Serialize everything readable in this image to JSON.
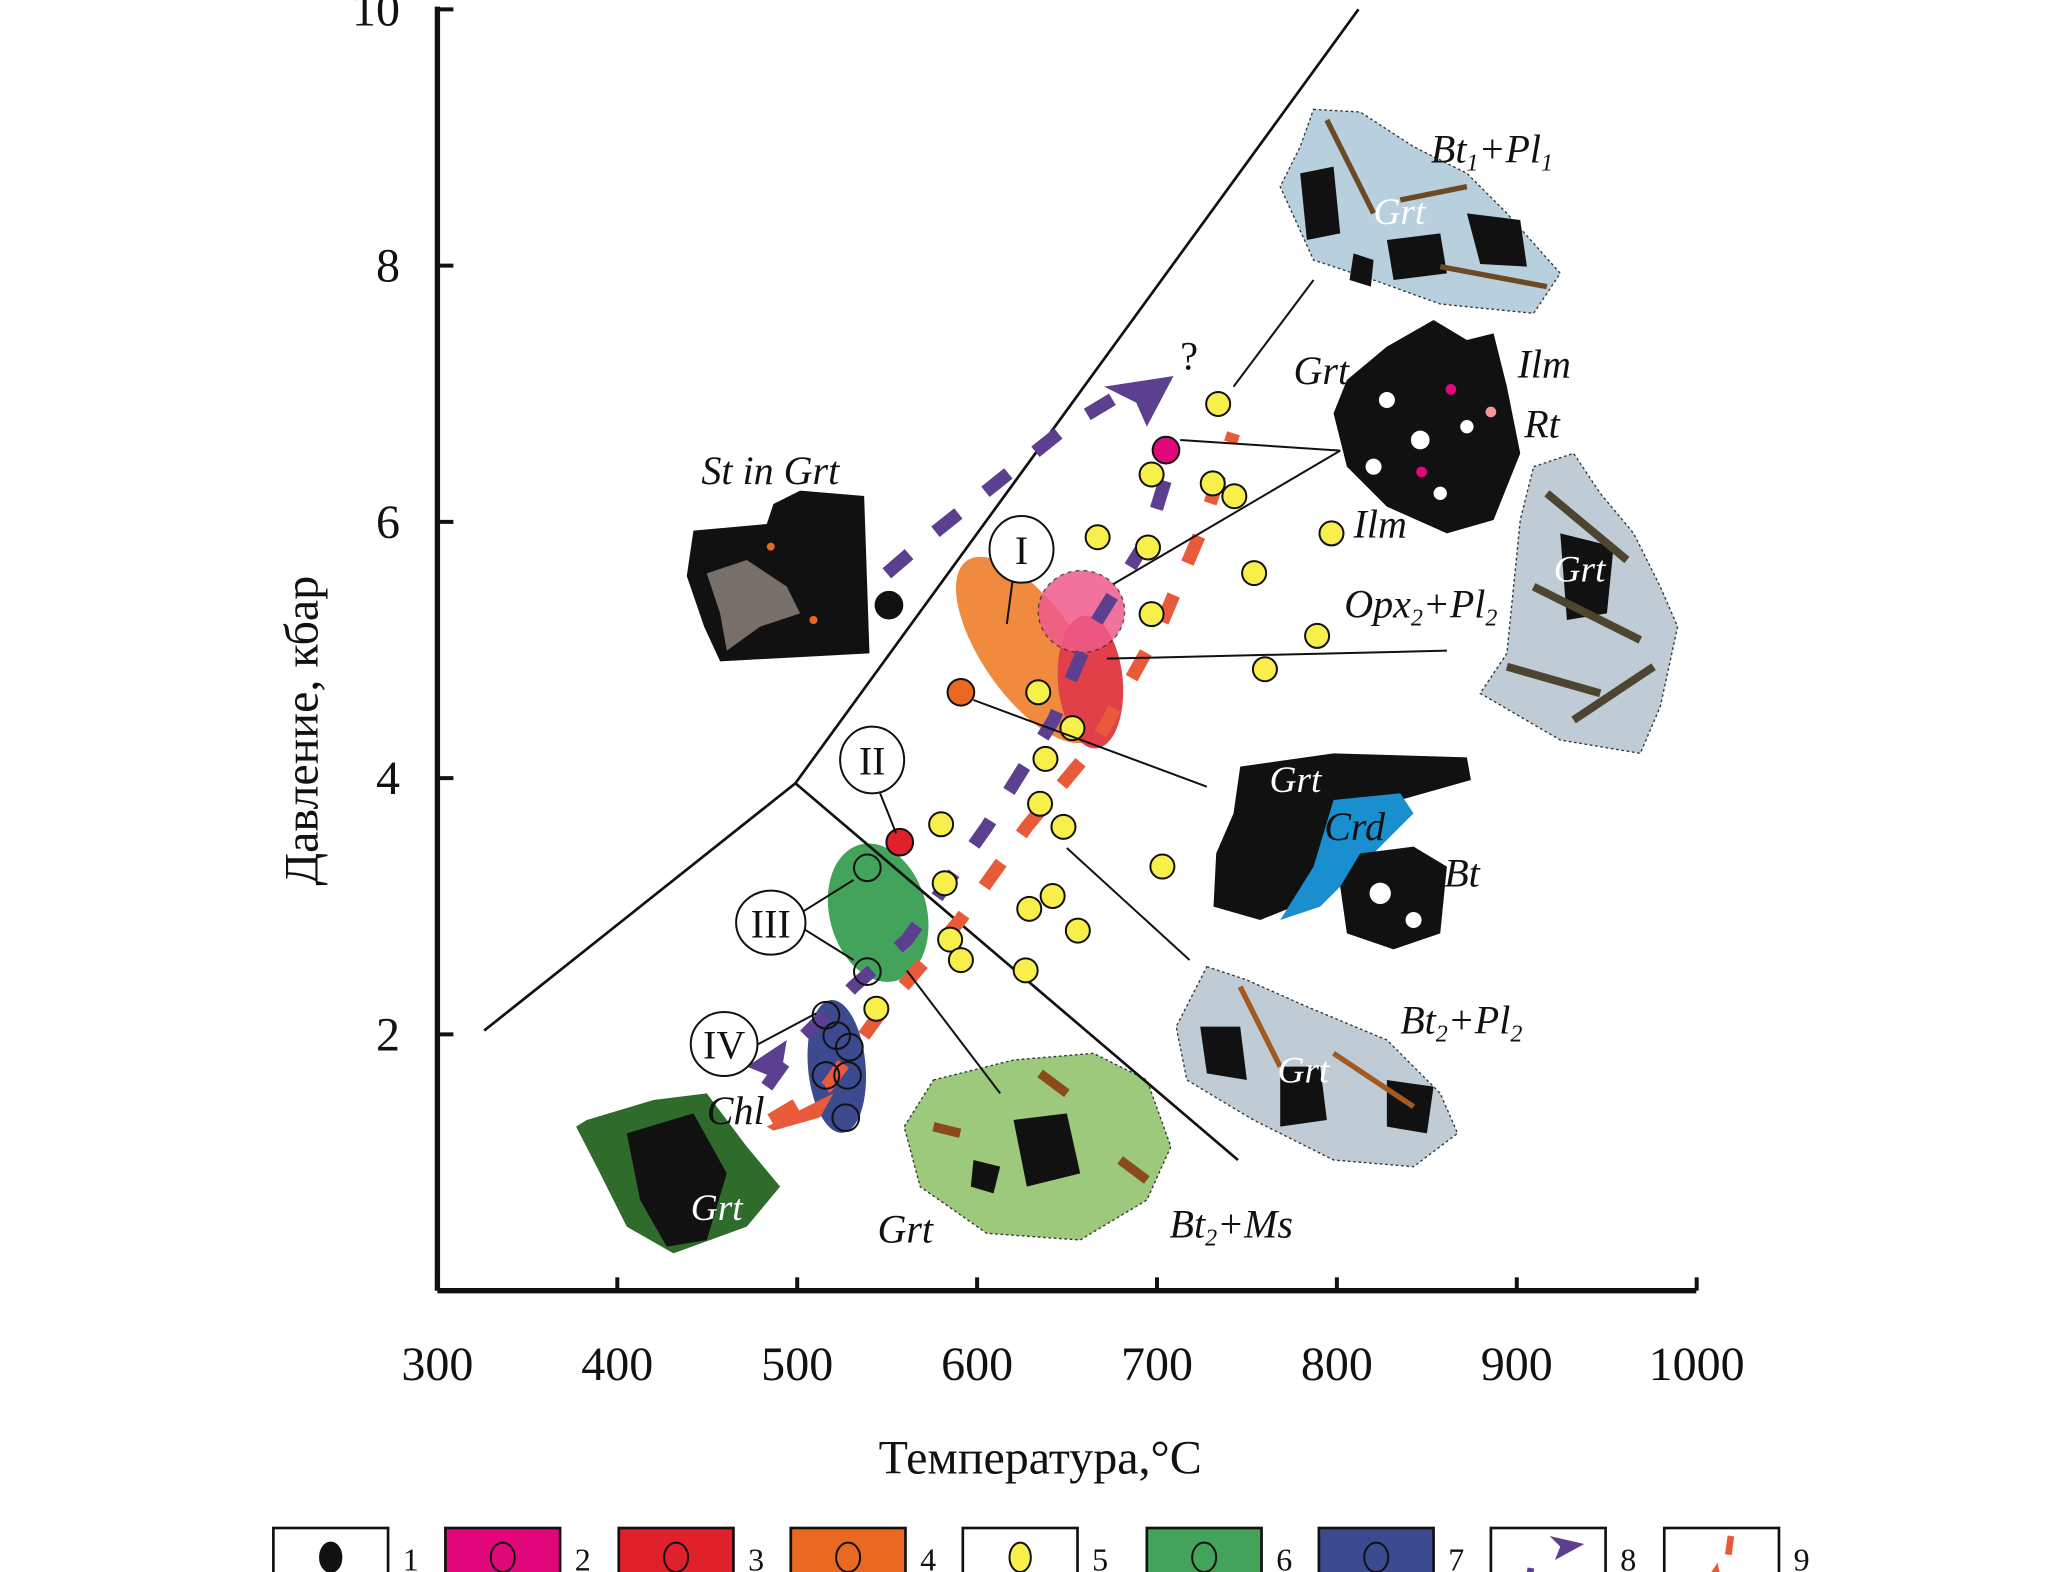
{
  "chart_data": {
    "type": "scatter",
    "title": "",
    "xlabel": "Температура,°C",
    "ylabel": "Давление, кбар",
    "xlim": [
      300,
      1000
    ],
    "ylim": [
      0,
      10
    ],
    "xticks": [
      "300",
      "400",
      "500",
      "600",
      "700",
      "800",
      "900",
      "1000"
    ],
    "yticks": [
      "2",
      "4",
      "6",
      "8",
      "10"
    ],
    "grid": false,
    "boundaries": [
      [
        [
          326,
          2.03
        ],
        [
          499,
          3.96
        ],
        [
          812,
          10.0
        ]
      ],
      [
        [
          499,
          3.96
        ],
        [
          745,
          1.02
        ]
      ]
    ],
    "series": [
      {
        "name": "1",
        "color": "#111111",
        "points": [
          [
            551,
            5.35
          ]
        ]
      },
      {
        "name": "2",
        "color": "#e0077a",
        "points": [
          [
            705,
            6.56
          ]
        ]
      },
      {
        "name": "3",
        "color": "#e0202a",
        "points": [
          [
            557,
            3.5
          ]
        ]
      },
      {
        "name": "4",
        "color": "#e8691f",
        "points": [
          [
            591,
            4.67
          ]
        ]
      },
      {
        "name": "5",
        "color": "#f8ef4a",
        "points": [
          [
            734,
            6.92
          ],
          [
            697,
            6.37
          ],
          [
            731,
            6.3
          ],
          [
            743,
            6.2
          ],
          [
            667,
            5.88
          ],
          [
            695,
            5.8
          ],
          [
            797,
            5.91
          ],
          [
            754,
            5.6
          ],
          [
            697,
            5.28
          ],
          [
            789,
            5.11
          ],
          [
            760,
            4.85
          ],
          [
            634,
            4.67
          ],
          [
            653,
            4.39
          ],
          [
            638,
            4.15
          ],
          [
            635,
            3.8
          ],
          [
            648,
            3.62
          ],
          [
            580,
            3.64
          ],
          [
            703,
            3.31
          ],
          [
            582,
            3.18
          ],
          [
            629,
            2.98
          ],
          [
            642,
            3.08
          ],
          [
            656,
            2.81
          ],
          [
            585,
            2.74
          ],
          [
            591,
            2.58
          ],
          [
            627,
            2.5
          ],
          [
            544,
            2.2
          ]
        ]
      },
      {
        "name": "6",
        "color": "#44a35a",
        "points": [
          [
            539,
            3.3
          ],
          [
            539,
            2.49
          ]
        ]
      },
      {
        "name": "7",
        "color": "#3c4a8f",
        "points": [
          [
            516,
            2.15
          ],
          [
            522,
            1.99
          ],
          [
            529,
            1.9
          ],
          [
            528,
            1.68
          ],
          [
            516,
            1.68
          ],
          [
            527,
            1.35
          ]
        ]
      }
    ],
    "fields": [
      {
        "name": "4",
        "color": "#f08a3e",
        "center": [
          629,
          5.0
        ],
        "rx_c": 26,
        "ry_kbar": 0.85
      },
      {
        "name": "3",
        "color": "#e24048",
        "center": [
          663,
          4.75
        ],
        "rx_c": 18,
        "ry_kbar": 0.52
      },
      {
        "name": "2",
        "color": "#ee5a8c",
        "center": [
          658,
          5.3
        ],
        "rx_c": 24,
        "ry_kbar": 0.32
      },
      {
        "name": "6",
        "color": "#44a35a",
        "center": [
          545,
          2.95
        ],
        "rx_c": 27,
        "ry_kbar": 0.55
      },
      {
        "name": "7",
        "color": "#3c4a8f",
        "center": [
          522,
          1.75
        ],
        "rx_c": 16,
        "ry_kbar": 0.52
      }
    ],
    "annotations": {
      "roman": [
        "I",
        "II",
        "III",
        "IV"
      ],
      "question": "?",
      "st_in_grt": "St in Grt",
      "grt": "Grt",
      "ilm": "Ilm",
      "rt": "Rt",
      "crd": "Crd",
      "bt": "Bt",
      "chl": "Chl",
      "bt1": "Bt",
      "s1": "1",
      "pl1": "+Pl",
      "s1b": "1",
      "opx2": "Opx",
      "s2": "2",
      "pl2": "+Pl",
      "s2b": "2",
      "bt2": "Bt",
      "s3": "2",
      "pl3": "+Pl",
      "s3b": "2",
      "bt2ms": "Bt",
      "s4": "2",
      "ms": "+Ms"
    },
    "legend": [
      "1",
      "2",
      "3",
      "4",
      "5",
      "6",
      "7",
      "8",
      "9"
    ],
    "legend_colors": [
      "#ffffff",
      "#e0077a",
      "#e0202a",
      "#e8691f",
      "#ffffff",
      "#44a35a",
      "#3c4a8f",
      "#ffffff",
      "#ffffff"
    ]
  }
}
